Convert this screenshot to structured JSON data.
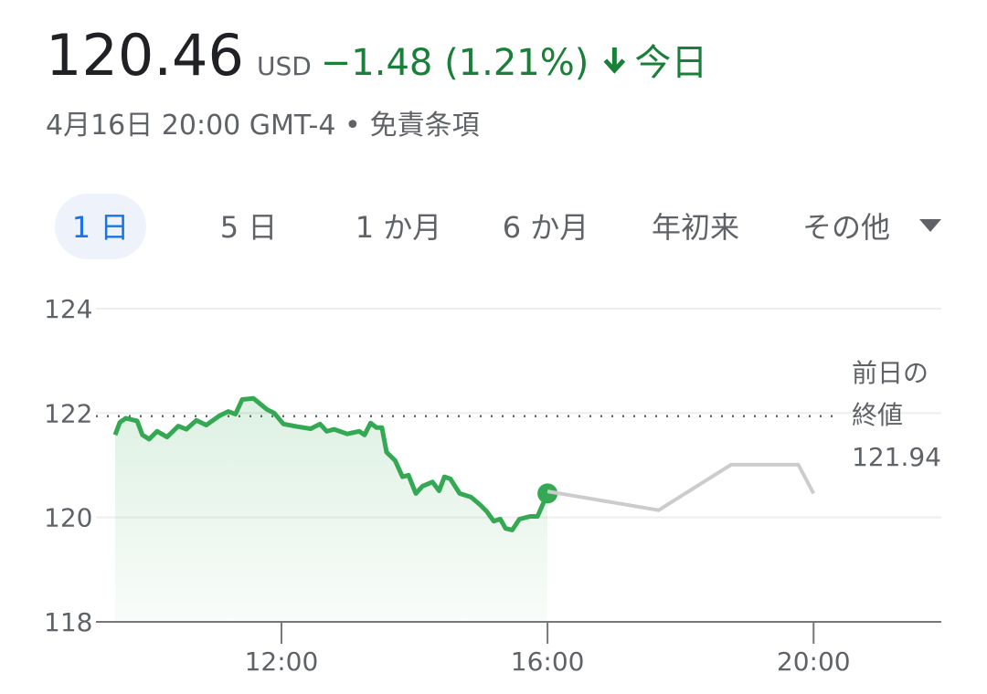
{
  "header": {
    "price": "120.46",
    "currency": "USD",
    "change": "−1.48 (1.21%)",
    "period": "今日",
    "timestamp": "4月16日 20:00 GMT-4 •",
    "disclaimer": "免責条項"
  },
  "tabs": {
    "items": [
      "1 日",
      "5 日",
      "1 か月",
      "6 か月",
      "年初来",
      "その他"
    ],
    "selected": 0
  },
  "chart_data": {
    "type": "line",
    "series": [
      {
        "color": "#34a853",
        "x": [
          9.5,
          9.57,
          9.66,
          9.83,
          9.91,
          10.01,
          10.13,
          10.28,
          10.45,
          10.57,
          10.72,
          10.87,
          11.07,
          11.2,
          11.31,
          11.41,
          11.58,
          11.78,
          11.89,
          12.03,
          12.24,
          12.44,
          12.58,
          12.68,
          12.79,
          12.99,
          13.17,
          13.25,
          13.34,
          13.43,
          13.51,
          13.58,
          13.71,
          13.82,
          13.91,
          14.02,
          14.12,
          14.27,
          14.37,
          14.45,
          14.54,
          14.68,
          14.85,
          14.98,
          15.09,
          15.19,
          15.29,
          15.37,
          15.47,
          15.58,
          15.74,
          15.85,
          16.0
        ],
        "values": [
          121.58,
          121.82,
          121.9,
          121.85,
          121.58,
          121.5,
          121.65,
          121.54,
          121.75,
          121.69,
          121.86,
          121.77,
          121.95,
          122.03,
          121.98,
          122.26,
          122.28,
          122.07,
          122.0,
          121.79,
          121.74,
          121.7,
          121.79,
          121.65,
          121.69,
          121.6,
          121.65,
          121.58,
          121.81,
          121.72,
          121.72,
          121.25,
          121.09,
          120.78,
          120.81,
          120.46,
          120.6,
          120.68,
          120.51,
          120.78,
          120.74,
          120.46,
          120.39,
          120.25,
          120.11,
          119.93,
          119.97,
          119.79,
          119.76,
          119.97,
          120.02,
          120.02,
          120.46
        ]
      },
      {
        "color": "#cccccc",
        "x": [
          16.0,
          17.67,
          18.76,
          19.77,
          20.0
        ],
        "values": [
          120.5,
          120.14,
          121.01,
          121.01,
          120.46
        ]
      }
    ],
    "previous_close": {
      "label": [
        "前日の",
        "終値"
      ],
      "value": 121.94
    },
    "ylim": [
      118,
      124
    ],
    "yticks": [
      118,
      120,
      122,
      124
    ],
    "xlim": [
      9.5,
      21.92
    ],
    "xticks": [
      {
        "value": 12,
        "label": "12:00"
      },
      {
        "value": 16,
        "label": "16:00"
      },
      {
        "value": 20,
        "label": "20:00"
      }
    ],
    "grid": true
  }
}
